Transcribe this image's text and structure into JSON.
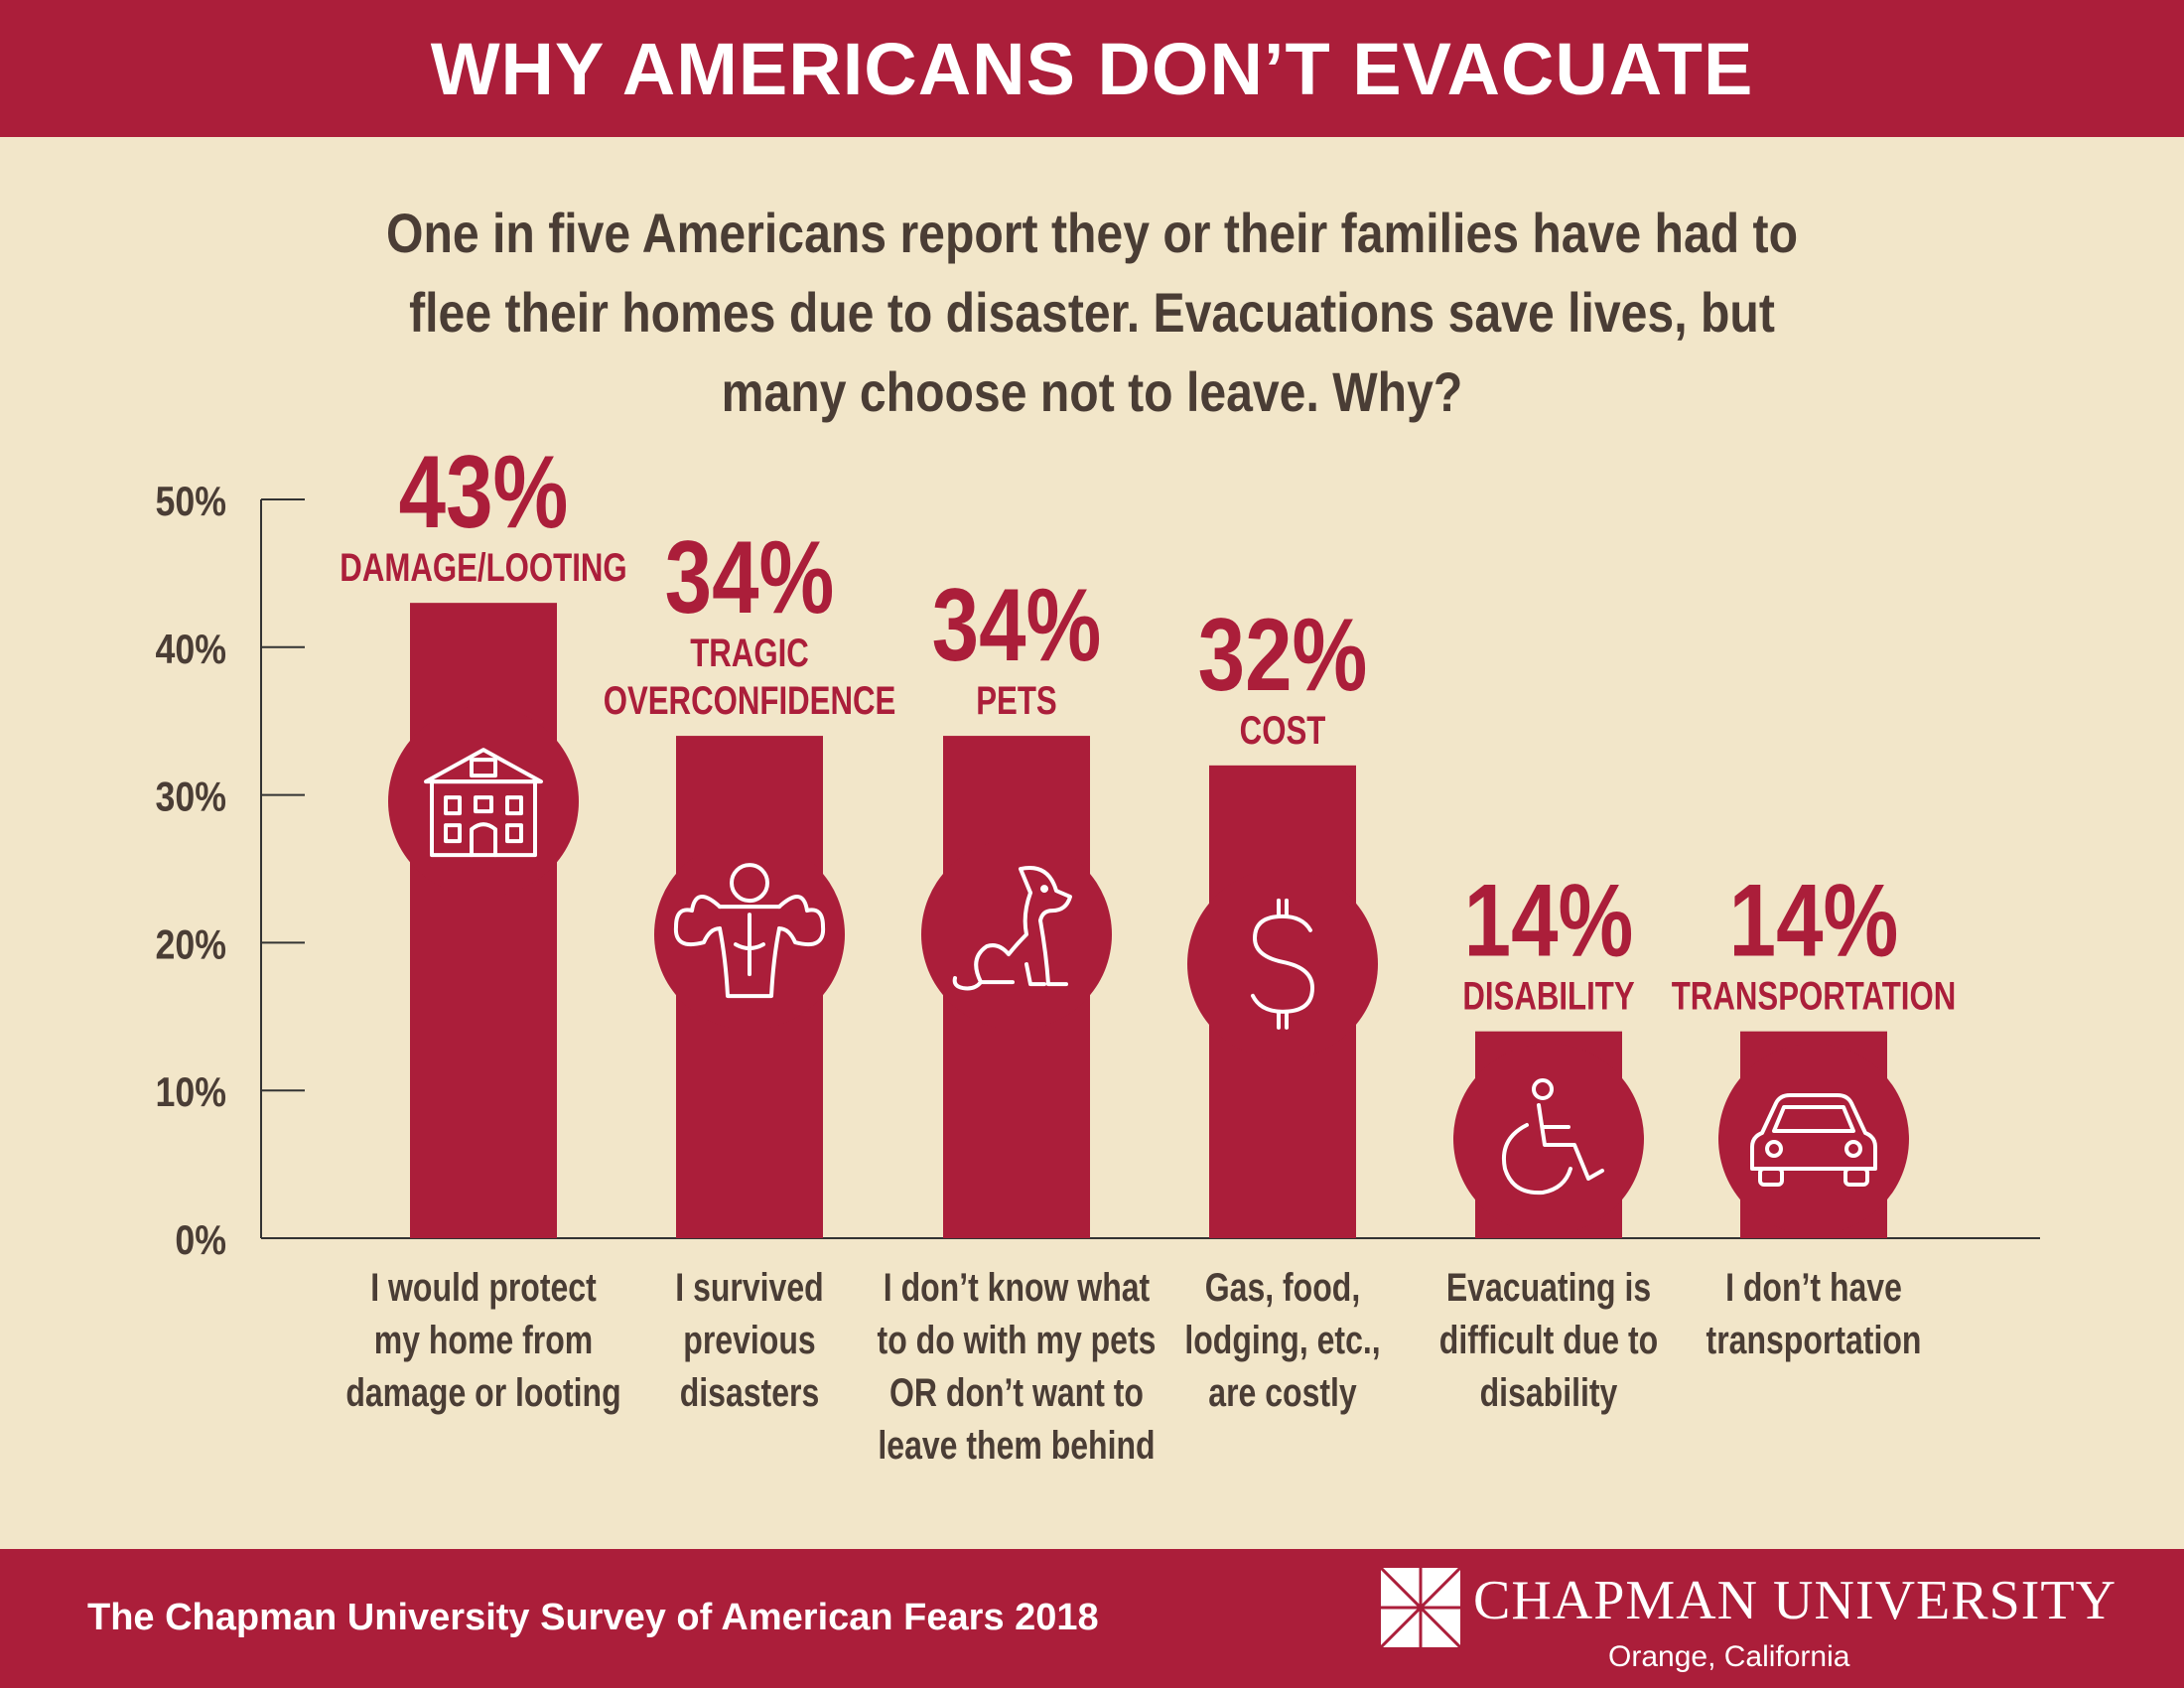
{
  "header": {
    "title": "WHY AMERICANS DON’T EVACUATE",
    "intro": "One in five Americans report they or their families have had to flee their homes due to disaster. Evacuations save lives, but many choose not to leave. Why?"
  },
  "colors": {
    "brand": "#ab1e3a",
    "background": "#f2e6c9",
    "text": "#4a3d35"
  },
  "chart_data": {
    "type": "bar",
    "ylim": [
      0,
      50
    ],
    "ticks": [
      0,
      10,
      20,
      30,
      40,
      50
    ],
    "tick_labels": [
      "0%",
      "10%",
      "20%",
      "30%",
      "40%",
      "50%"
    ],
    "grid": false,
    "categories": [
      {
        "value": 43,
        "value_label": "43%",
        "category": "DAMAGE/LOOTING",
        "icon": "house-icon",
        "description": [
          "I would protect",
          "my home from",
          "damage or looting"
        ]
      },
      {
        "value": 34,
        "value_label": "34%",
        "category": "TRAGIC\nOVERCONFIDENCE",
        "icon": "bodybuilder-icon",
        "description": [
          "I survived",
          "previous",
          "disasters"
        ]
      },
      {
        "value": 34,
        "value_label": "34%",
        "category": "PETS",
        "icon": "dog-icon",
        "description": [
          "I don’t know what",
          "to do with my pets",
          "OR don’t want to",
          "leave them behind"
        ]
      },
      {
        "value": 32,
        "value_label": "32%",
        "category": "COST",
        "icon": "dollar-icon",
        "description": [
          "Gas, food,",
          "lodging, etc.,",
          "are costly"
        ]
      },
      {
        "value": 14,
        "value_label": "14%",
        "category": "DISABILITY",
        "icon": "wheelchair-icon",
        "description": [
          "Evacuating is",
          "difficult due to",
          "disability"
        ]
      },
      {
        "value": 14,
        "value_label": "14%",
        "category": "TRANSPORTATION",
        "icon": "car-icon",
        "description": [
          "I don’t have",
          "transportation"
        ]
      }
    ]
  },
  "footer": {
    "survey": "The Chapman University Survey of American Fears 2018",
    "university": "CHAPMAN UNIVERSITY",
    "location": "Orange, California"
  }
}
